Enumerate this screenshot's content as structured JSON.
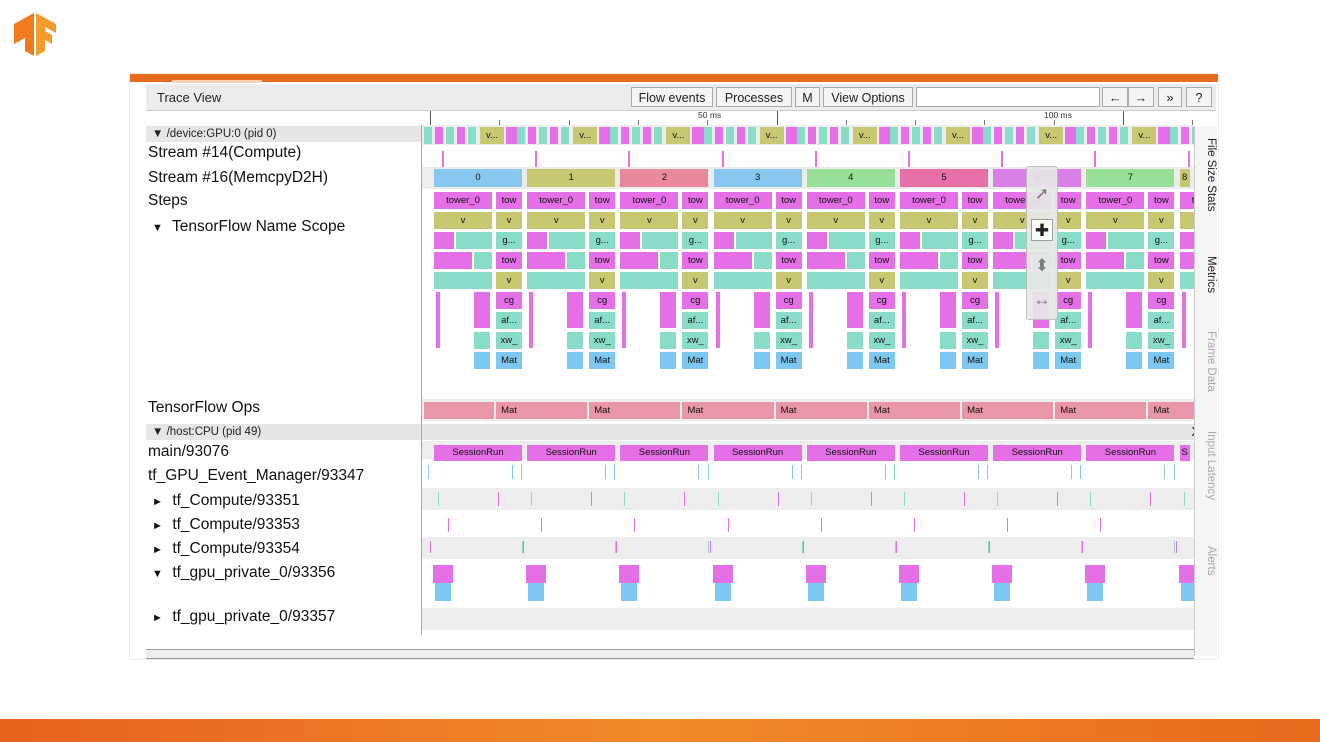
{
  "colors": {
    "accent": "#e86a1c",
    "pink": "#e46fe6",
    "olive": "#c8c872",
    "teal": "#88dcc8",
    "cyan": "#7cc8f0",
    "rose": "#e896a8",
    "step_palette": [
      "#88c8f0",
      "#c8c872",
      "#e88a9c",
      "#88c8f0",
      "#98e098",
      "#e870a8",
      "#d880e8",
      "#98e098",
      "#c8c872"
    ]
  },
  "window": {
    "title": "Trace View"
  },
  "toolbar": {
    "flow_events": "Flow events",
    "processes": "Processes",
    "m_label": "M",
    "view_options": "View Options",
    "back_arrow": "←",
    "forward_arrow": "→",
    "more": "»",
    "help": "?"
  },
  "ruler": {
    "labels": [
      "50 ms",
      "100 ms"
    ]
  },
  "gpu_process": {
    "header": "▼ /device:GPU:0 (pid 0)",
    "close": "X",
    "tracks": [
      {
        "label": "Stream #14(Compute)",
        "expand": ""
      },
      {
        "label": "Stream #16(MemcpyD2H)",
        "expand": ""
      },
      {
        "label": "Steps",
        "expand": ""
      },
      {
        "label": "TensorFlow Name Scope",
        "expand": "▼"
      },
      {
        "label": "TensorFlow Ops",
        "expand": ""
      }
    ]
  },
  "steps": [
    "0",
    "1",
    "2",
    "3",
    "4",
    "5",
    "6",
    "7",
    "8"
  ],
  "scope_labels": {
    "tower": "tower_0",
    "tow": "tow",
    "v": "v",
    "v_ellipsis": "v...",
    "g": "g...",
    "cg": "cg",
    "af": "af...",
    "xw": "xw_",
    "mat": "Mat"
  },
  "cpu_process": {
    "header": "▼ /host:CPU (pid 49)",
    "close": "X",
    "tracks": [
      {
        "label": "main/93076",
        "expand": ""
      },
      {
        "label": "tf_GPU_Event_Manager/93347",
        "expand": ""
      },
      {
        "label": "tf_Compute/93351",
        "expand": "►"
      },
      {
        "label": "tf_Compute/93353",
        "expand": "►"
      },
      {
        "label": "tf_Compute/93354",
        "expand": "►"
      },
      {
        "label": "tf_gpu_private_0/93356",
        "expand": "▼"
      },
      {
        "label": "tf_gpu_private_0/93357",
        "expand": "►"
      }
    ]
  },
  "session_label": "SessionRun",
  "session_trunc": "S",
  "sidebar": [
    "File Size Stats",
    "Metrics",
    "Frame Data",
    "Input Latency",
    "Alerts"
  ],
  "nav_tools": [
    "select-icon",
    "pan-icon",
    "zoom-icon",
    "timing-icon"
  ]
}
